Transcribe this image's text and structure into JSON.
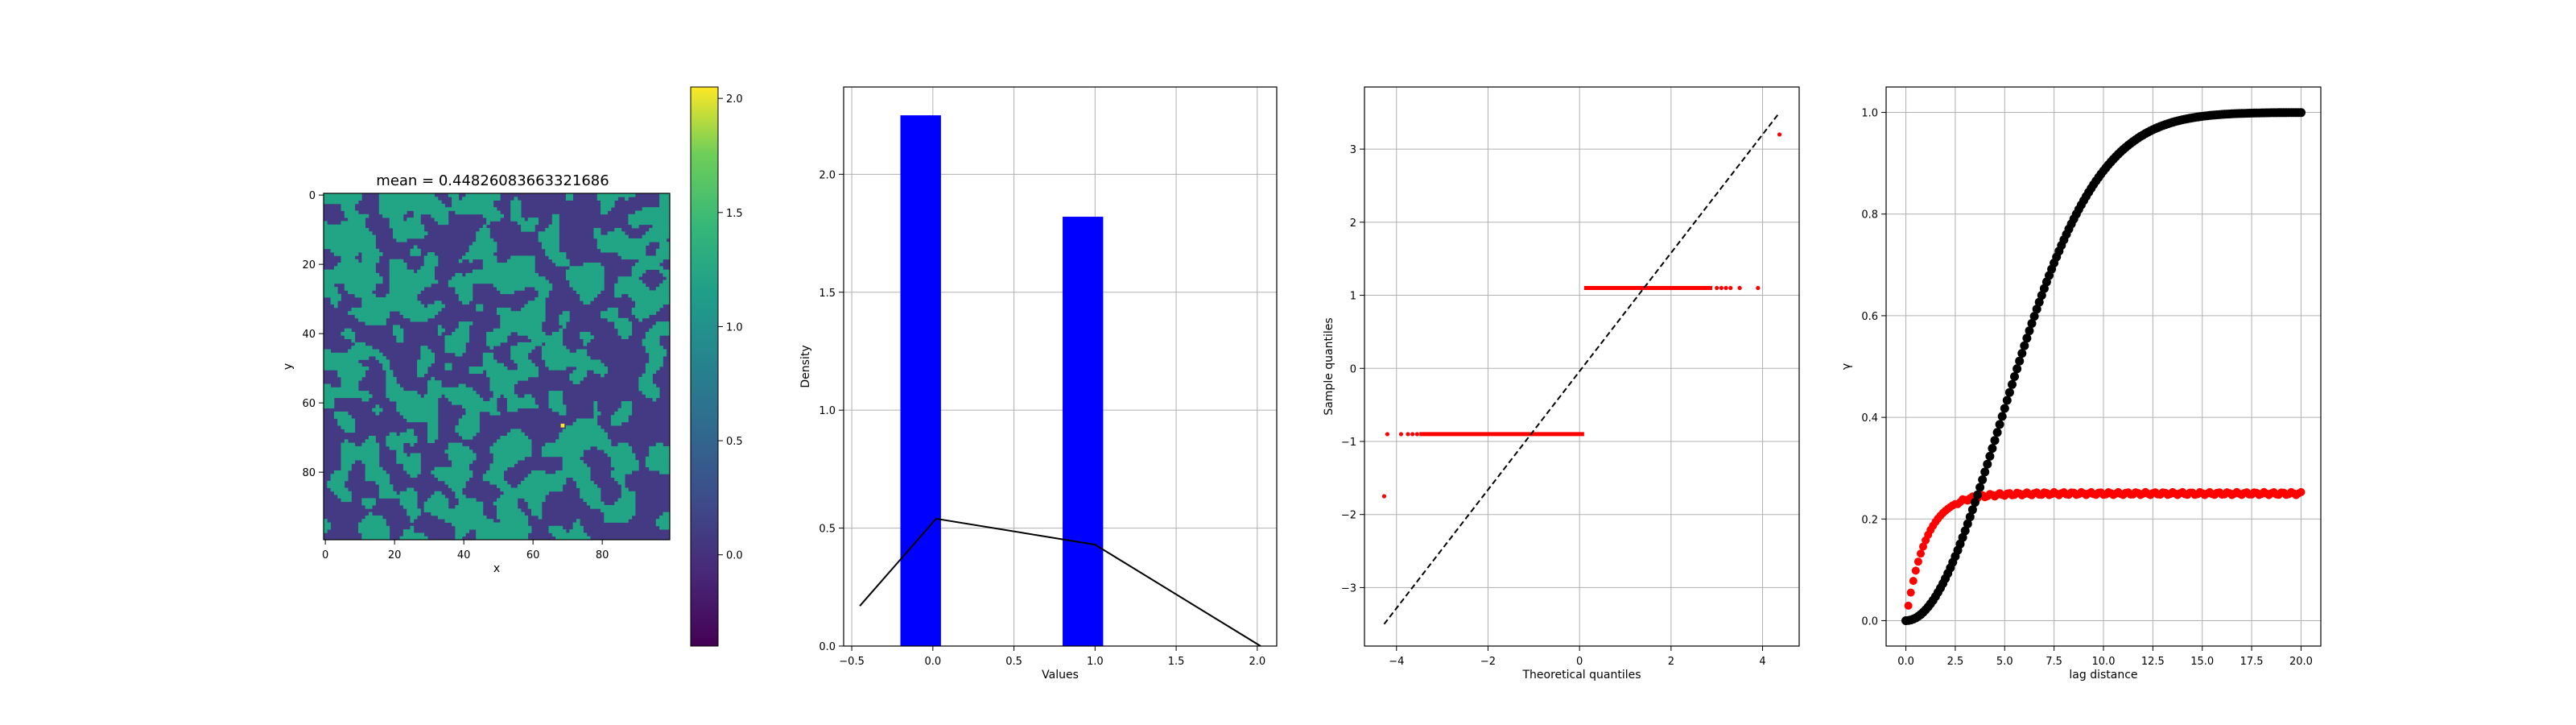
{
  "chart_data": [
    {
      "type": "heatmap",
      "title": "mean = 0.44826083663321686",
      "xlabel": "x",
      "ylabel": "y",
      "grid_size": [
        100,
        100
      ],
      "xlim": [
        0,
        99
      ],
      "ylim": [
        99,
        0
      ],
      "x_ticks": [
        "0",
        "20",
        "40",
        "60",
        "80"
      ],
      "y_ticks": [
        "0",
        "20",
        "40",
        "60",
        "80"
      ],
      "value_levels": [
        0,
        1,
        2
      ],
      "level_fractions": [
        0.55,
        0.45,
        0.0
      ],
      "colormap": "viridis",
      "colors": {
        "low": "#443983",
        "mid": "#21a585",
        "high": "#fde725",
        "min": "#440154"
      },
      "colorbar": {
        "range": [
          -0.4,
          2.05
        ],
        "ticks": [
          "0.0",
          "0.5",
          "1.0",
          "1.5",
          "2.0"
        ]
      },
      "grid": false
    },
    {
      "type": "bar",
      "title": "",
      "xlabel": "Values",
      "ylabel": "Density",
      "bars": [
        {
          "x_start": -0.2,
          "x_end": 0.05,
          "value": 2.25
        },
        {
          "x_start": 0.8,
          "x_end": 1.05,
          "value": 1.82
        }
      ],
      "kde_line": {
        "x": [
          -0.45,
          0.02,
          1.0,
          2.02
        ],
        "y": [
          0.17,
          0.54,
          0.43,
          0.0
        ]
      },
      "xlim": [
        -0.55,
        2.12
      ],
      "ylim": [
        0,
        2.37
      ],
      "x_ticks": [
        "−0.5",
        "0.0",
        "0.5",
        "1.0",
        "1.5",
        "2.0"
      ],
      "y_ticks": [
        "0.0",
        "0.5",
        "1.0",
        "1.5",
        "2.0"
      ],
      "colors": {
        "bar": "#0000ff",
        "line": "#000000"
      },
      "grid": true
    },
    {
      "type": "scatter",
      "title": "",
      "xlabel": "Theoretical quantiles",
      "ylabel": "Sample quantiles",
      "segments": [
        {
          "x_start": -3.5,
          "x_end": 0.1,
          "y": -0.9
        },
        {
          "x_start": 0.1,
          "x_end": 2.9,
          "y": 1.1
        }
      ],
      "sparse_points": [
        {
          "x": -4.27,
          "y": -1.75
        },
        {
          "x": -4.2,
          "y": -0.9
        },
        {
          "x": -3.9,
          "y": -0.9
        },
        {
          "x": -3.75,
          "y": -0.9
        },
        {
          "x": -3.65,
          "y": -0.9
        },
        {
          "x": -3.55,
          "y": -0.9
        },
        {
          "x": 3.0,
          "y": 1.1
        },
        {
          "x": 3.1,
          "y": 1.1
        },
        {
          "x": 3.2,
          "y": 1.1
        },
        {
          "x": 3.3,
          "y": 1.1
        },
        {
          "x": 3.5,
          "y": 1.1
        },
        {
          "x": 3.9,
          "y": 1.1
        },
        {
          "x": 4.37,
          "y": 3.2
        }
      ],
      "reference_line": {
        "x": [
          -4.27,
          4.37
        ],
        "y": [
          -3.5,
          3.5
        ]
      },
      "xlim": [
        -4.7,
        4.8
      ],
      "ylim": [
        -3.8,
        3.85
      ],
      "x_ticks": [
        "−4",
        "−2",
        "0",
        "2",
        "4"
      ],
      "y_ticks": [
        "−3",
        "−2",
        "−1",
        "0",
        "1",
        "2",
        "3"
      ],
      "colors": {
        "points": "#ff0000",
        "line": "#000000"
      },
      "grid": true
    },
    {
      "type": "scatter",
      "title": "",
      "xlabel": "lag distance",
      "ylabel": "γ",
      "series": [
        {
          "color": "#000000",
          "model": "1 - exp(-(h/6.8)^2)",
          "x_range": [
            0,
            20
          ],
          "n_points": 161
        },
        {
          "color": "#ff0000",
          "model": "0.25 * (1 - exp(-h/1.0))",
          "x_range": [
            0,
            20
          ],
          "n_points": 161
        }
      ],
      "xlim": [
        -1.0,
        21.0
      ],
      "ylim": [
        -0.05,
        1.05
      ],
      "x_ticks": [
        "0.0",
        "2.5",
        "5.0",
        "7.5",
        "10.0",
        "12.5",
        "15.0",
        "17.5",
        "20.0"
      ],
      "y_ticks": [
        "0.0",
        "0.2",
        "0.4",
        "0.6",
        "0.8",
        "1.0"
      ],
      "grid": true
    }
  ]
}
